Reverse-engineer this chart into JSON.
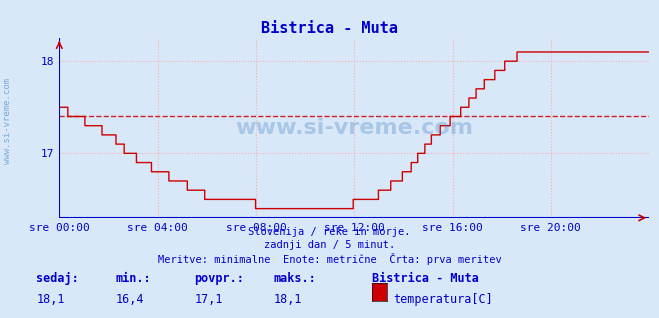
{
  "title": "Bistrica - Muta",
  "bg_color": "#d8e8f8",
  "plot_bg_color": "#d8e8f8",
  "line_color": "#cc0000",
  "axis_color": "#0000cc",
  "grid_color": "#ffaaaa",
  "avg_value": 17.4,
  "y_min": 16.3,
  "y_max": 18.25,
  "y_ticks": [
    17,
    18
  ],
  "x_labels": [
    "sre 00:00",
    "sre 04:00",
    "sre 08:00",
    "sre 12:00",
    "sre 16:00",
    "sre 20:00"
  ],
  "x_tick_positions": [
    0,
    288,
    576,
    864,
    1152,
    1440
  ],
  "total_points": 1728,
  "watermark": "www.si-vreme.com",
  "subtitle1": "Slovenija / reke in morje.",
  "subtitle2": "zadnji dan / 5 minut.",
  "subtitle3": "Meritve: minimalne  Enote: metrične  Črta: prva meritev",
  "legend_station": "Bistrica - Muta",
  "legend_label": "temperatura[C]",
  "stats_labels": [
    "sedaj:",
    "min.:",
    "povpr.:",
    "maks.:"
  ],
  "stats_values": [
    "18,1",
    "16,4",
    "17,1",
    "18,1"
  ],
  "sidebar_text": "www.si-vreme.com"
}
